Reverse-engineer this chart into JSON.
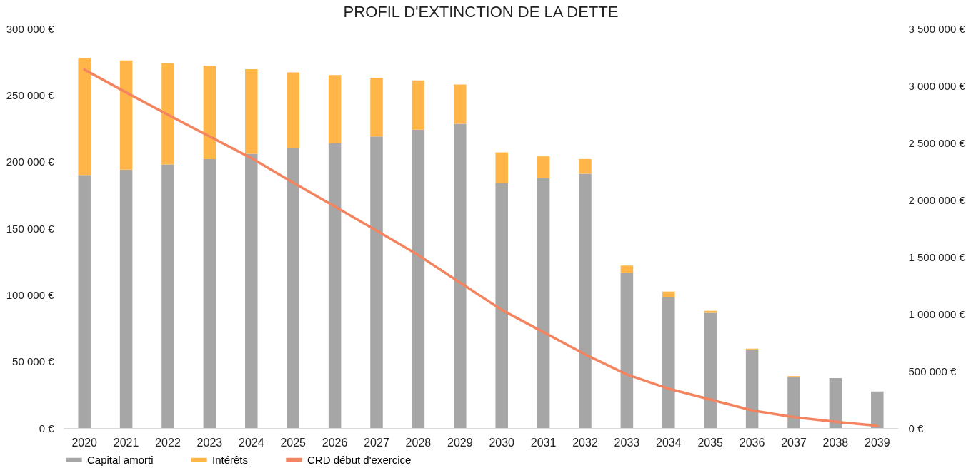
{
  "chart_data": {
    "type": "bar",
    "title": "PROFIL D'EXTINCTION DE LA DETTE",
    "stacked": true,
    "legend": "bottom",
    "grid": false,
    "categories": [
      "2020",
      "2021",
      "2022",
      "2023",
      "2024",
      "2025",
      "2026",
      "2027",
      "2028",
      "2029",
      "2030",
      "2031",
      "2032",
      "2033",
      "2034",
      "2035",
      "2036",
      "2037",
      "2038",
      "2039"
    ],
    "series": [
      {
        "name": "Capital amorti",
        "color": "#a6a6a6",
        "values": [
          190000,
          194000,
          198000,
          202000,
          206000,
          210000,
          214000,
          219000,
          224000,
          228500,
          184000,
          187500,
          191000,
          116500,
          98000,
          86500,
          59000,
          38500,
          37500,
          27500
        ]
      },
      {
        "name": "Intérêts",
        "color": "#ffb547",
        "values": [
          88000,
          82000,
          76000,
          70000,
          63500,
          57000,
          51000,
          44000,
          37000,
          29500,
          23000,
          16500,
          11000,
          5500,
          4500,
          1500,
          600,
          500,
          0,
          0
        ]
      },
      {
        "name": "CRD début d'exercice",
        "type": "line",
        "axis": "y2",
        "color": "#f4845f",
        "values": [
          3140000,
          2940000,
          2745000,
          2555000,
          2365000,
          2150000,
          1940000,
          1730000,
          1515000,
          1275000,
          1035000,
          840000,
          645000,
          470000,
          345000,
          250000,
          155000,
          95000,
          55000,
          20000
        ]
      }
    ],
    "ylim": [
      0,
      300000
    ],
    "yticks": [
      {
        "value": 0,
        "label": "0 €"
      },
      {
        "value": 50000,
        "label": "50 000 €"
      },
      {
        "value": 100000,
        "label": "100 000 €"
      },
      {
        "value": 150000,
        "label": "150 000 €"
      },
      {
        "value": 200000,
        "label": "200 000 €"
      },
      {
        "value": 250000,
        "label": "250 000 €"
      },
      {
        "value": 300000,
        "label": "300 000 €"
      }
    ],
    "y2lim": [
      0,
      3500000
    ],
    "y2ticks": [
      {
        "value": 0,
        "label": "0 €"
      },
      {
        "value": 500000,
        "label": "500 000 €"
      },
      {
        "value": 1000000,
        "label": "1 000 000 €"
      },
      {
        "value": 1500000,
        "label": "1 500 000 €"
      },
      {
        "value": 2000000,
        "label": "2 000 000 €"
      },
      {
        "value": 2500000,
        "label": "2 500 000 €"
      },
      {
        "value": 3000000,
        "label": "3 000 000 €"
      },
      {
        "value": 3500000,
        "label": "3 500 000 €"
      }
    ]
  }
}
